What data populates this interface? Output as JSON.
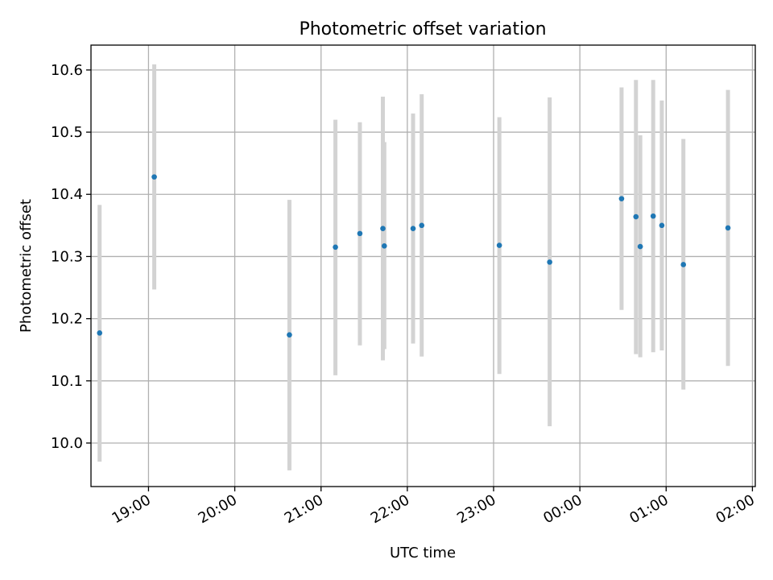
{
  "chart_data": {
    "type": "scatter",
    "title": "Photometric offset variation",
    "xlabel": "UTC time",
    "ylabel": "Photometric offset",
    "grid": true,
    "x_ticks": [
      "19:00",
      "20:00",
      "21:00",
      "22:00",
      "23:00",
      "00:00",
      "01:00",
      "02:00"
    ],
    "y_ticks": [
      "10.0",
      "10.1",
      "10.2",
      "10.3",
      "10.4",
      "10.5",
      "10.6"
    ],
    "xlim": [
      "18:20",
      "02:02"
    ],
    "ylim": [
      9.93,
      10.64
    ],
    "colors": {
      "point": "#1f77b4",
      "errorbar": "#d3d3d3",
      "grid": "#b0b0b0"
    },
    "series": [
      {
        "points": [
          {
            "x": "18:26",
            "y": 10.177,
            "ylow": 9.97,
            "yhigh": 10.383
          },
          {
            "x": "19:04",
            "y": 10.428,
            "ylow": 10.247,
            "yhigh": 10.609
          },
          {
            "x": "20:38",
            "y": 10.174,
            "ylow": 9.956,
            "yhigh": 10.391
          },
          {
            "x": "21:10",
            "y": 10.315,
            "ylow": 10.109,
            "yhigh": 10.52
          },
          {
            "x": "21:27",
            "y": 10.337,
            "ylow": 10.157,
            "yhigh": 10.516
          },
          {
            "x": "21:43",
            "y": 10.345,
            "ylow": 10.133,
            "yhigh": 10.557
          },
          {
            "x": "21:44",
            "y": 10.317,
            "ylow": 10.151,
            "yhigh": 10.484
          },
          {
            "x": "22:04",
            "y": 10.345,
            "ylow": 10.16,
            "yhigh": 10.53
          },
          {
            "x": "22:10",
            "y": 10.35,
            "ylow": 10.139,
            "yhigh": 10.561
          },
          {
            "x": "23:04",
            "y": 10.318,
            "ylow": 10.111,
            "yhigh": 10.524
          },
          {
            "x": "23:39",
            "y": 10.291,
            "ylow": 10.027,
            "yhigh": 10.556
          },
          {
            "x": "00:29",
            "y": 10.393,
            "ylow": 10.214,
            "yhigh": 10.572
          },
          {
            "x": "00:39",
            "y": 10.364,
            "ylow": 10.143,
            "yhigh": 10.584
          },
          {
            "x": "00:42",
            "y": 10.316,
            "ylow": 10.138,
            "yhigh": 10.495
          },
          {
            "x": "00:51",
            "y": 10.365,
            "ylow": 10.146,
            "yhigh": 10.584
          },
          {
            "x": "00:57",
            "y": 10.35,
            "ylow": 10.149,
            "yhigh": 10.551
          },
          {
            "x": "01:12",
            "y": 10.287,
            "ylow": 10.086,
            "yhigh": 10.489
          },
          {
            "x": "01:43",
            "y": 10.346,
            "ylow": 10.124,
            "yhigh": 10.568
          }
        ]
      }
    ]
  }
}
